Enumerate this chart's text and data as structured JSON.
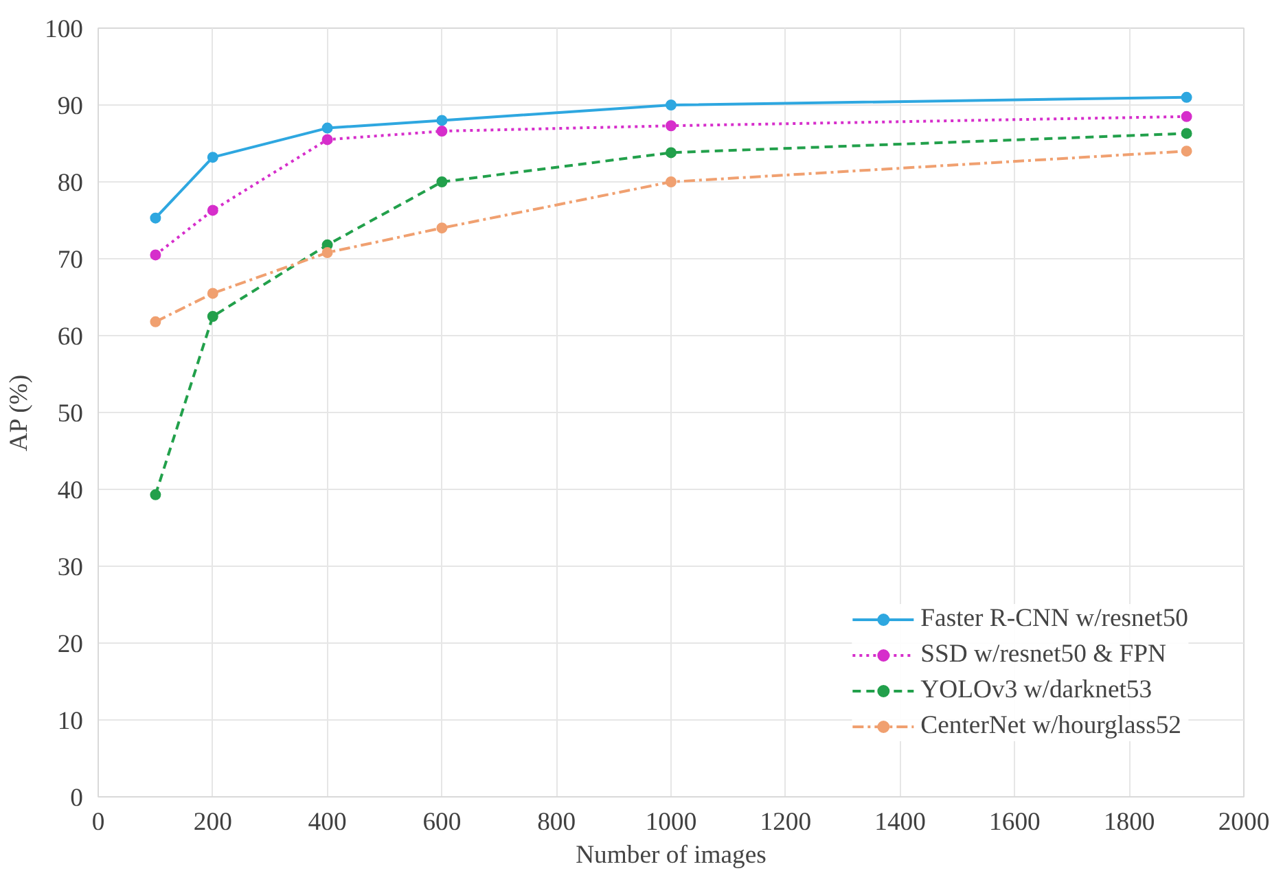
{
  "chart_data": {
    "type": "line",
    "xlabel": "Number of images",
    "ylabel": "AP (%)",
    "x": [
      100,
      200,
      400,
      600,
      1000,
      1900
    ],
    "xlim": [
      0,
      2000
    ],
    "xticks": [
      0,
      200,
      400,
      600,
      800,
      1000,
      1200,
      1400,
      1600,
      1800,
      2000
    ],
    "ylim": [
      0,
      100
    ],
    "yticks": [
      0,
      10,
      20,
      30,
      40,
      50,
      60,
      70,
      80,
      90,
      100
    ],
    "grid": true,
    "legend": "bottom right",
    "marker": "circle",
    "series": [
      {
        "name": "Faster R-CNN w/resnet50",
        "color": "#2ea7e0",
        "line_style": "solid",
        "values": [
          75.3,
          83.2,
          87,
          88,
          90,
          91
        ]
      },
      {
        "name": "SSD w/resnet50 & FPN",
        "color": "#d62ecb",
        "line_style": "dotted",
        "values": [
          70.5,
          76.3,
          85.5,
          86.6,
          87.3,
          88.5
        ]
      },
      {
        "name": "YOLOv3 w/darknet53",
        "color": "#22a04b",
        "line_style": "dashed",
        "values": [
          39.3,
          62.5,
          71.8,
          80,
          83.8,
          86.3
        ]
      },
      {
        "name": "CenterNet w/hourglass52",
        "color": "#f0a070",
        "line_style": "dashdot",
        "values": [
          61.8,
          65.5,
          70.8,
          74,
          80,
          84
        ]
      }
    ]
  }
}
